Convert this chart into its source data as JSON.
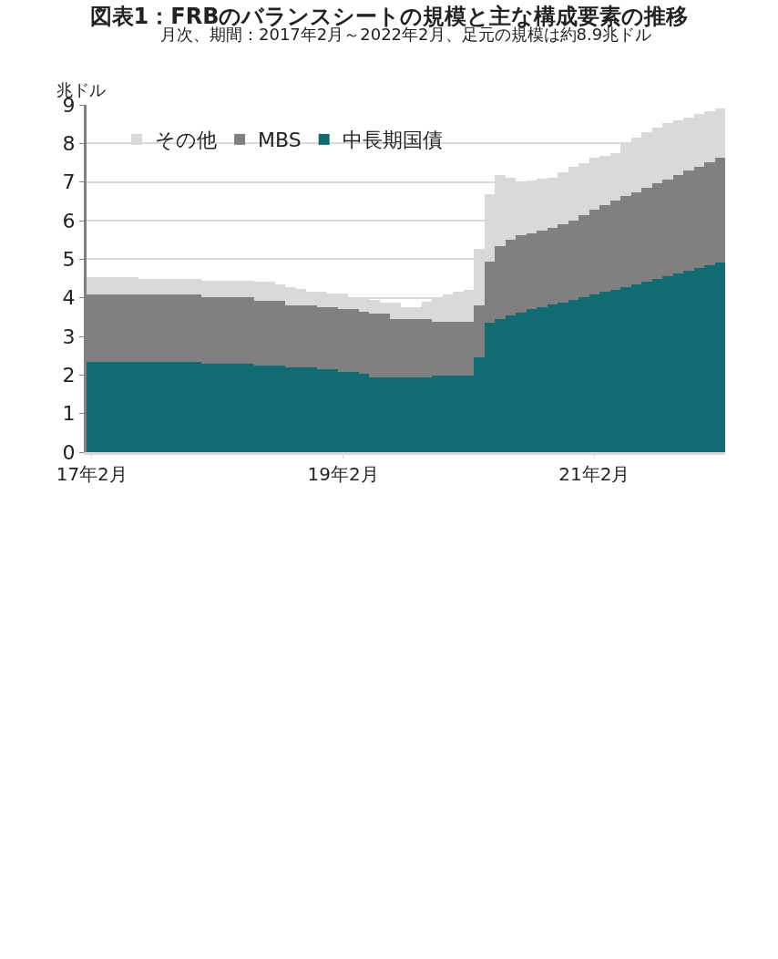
{
  "chart_data": {
    "type": "bar",
    "stacked": true,
    "title": "図表1：FRBのバランスシートの規模と主な構成要素の推移",
    "subtitle": "月次、期間：2017年2月～2022年2月、足元の規模は約8.9兆ドル",
    "ylabel": "兆ドル",
    "categories": [
      "17年2月",
      null,
      null,
      null,
      null,
      null,
      null,
      null,
      null,
      null,
      null,
      null,
      null,
      null,
      null,
      null,
      null,
      null,
      null,
      null,
      null,
      null,
      null,
      null,
      "19年2月",
      null,
      null,
      null,
      null,
      null,
      null,
      null,
      null,
      null,
      null,
      null,
      null,
      null,
      null,
      null,
      null,
      null,
      null,
      null,
      null,
      null,
      null,
      null,
      "21年2月",
      null,
      null,
      null,
      null,
      null,
      null,
      null,
      null,
      null,
      null,
      null,
      null
    ],
    "series": [
      {
        "name": "中長期国債",
        "color": "#116b70",
        "values": [
          2.33,
          2.33,
          2.33,
          2.33,
          2.33,
          2.33,
          2.33,
          2.33,
          2.33,
          2.33,
          2.33,
          2.28,
          2.28,
          2.28,
          2.28,
          2.28,
          2.24,
          2.24,
          2.24,
          2.19,
          2.19,
          2.19,
          2.14,
          2.14,
          2.08,
          2.08,
          2.02,
          1.93,
          1.93,
          1.93,
          1.93,
          1.93,
          1.93,
          1.99,
          1.99,
          1.99,
          1.99,
          2.45,
          3.35,
          3.45,
          3.55,
          3.62,
          3.7,
          3.76,
          3.82,
          3.88,
          3.95,
          4.02,
          4.09,
          4.15,
          4.21,
          4.27,
          4.35,
          4.42,
          4.5,
          4.57,
          4.64,
          4.71,
          4.78,
          4.85,
          4.92
        ]
      },
      {
        "name": "MBS",
        "color": "#808080",
        "values": [
          1.76,
          1.76,
          1.76,
          1.76,
          1.76,
          1.76,
          1.76,
          1.76,
          1.76,
          1.76,
          1.76,
          1.74,
          1.74,
          1.74,
          1.74,
          1.74,
          1.68,
          1.68,
          1.68,
          1.62,
          1.62,
          1.62,
          1.62,
          1.62,
          1.63,
          1.63,
          1.62,
          1.66,
          1.66,
          1.52,
          1.52,
          1.52,
          1.52,
          1.39,
          1.39,
          1.39,
          1.39,
          1.36,
          1.59,
          1.89,
          1.95,
          2.0,
          1.97,
          1.97,
          1.98,
          2.02,
          2.05,
          2.13,
          2.2,
          2.25,
          2.31,
          2.36,
          2.39,
          2.43,
          2.46,
          2.5,
          2.54,
          2.58,
          2.62,
          2.66,
          2.71
        ]
      },
      {
        "name": "その他",
        "color": "#d9d9d9",
        "values": [
          0.45,
          0.45,
          0.45,
          0.45,
          0.45,
          0.41,
          0.41,
          0.41,
          0.41,
          0.41,
          0.41,
          0.43,
          0.43,
          0.43,
          0.43,
          0.43,
          0.5,
          0.5,
          0.43,
          0.47,
          0.42,
          0.35,
          0.4,
          0.34,
          0.39,
          0.29,
          0.36,
          0.36,
          0.29,
          0.43,
          0.31,
          0.31,
          0.45,
          0.62,
          0.7,
          0.77,
          0.82,
          1.46,
          1.75,
          1.83,
          1.6,
          1.4,
          1.38,
          1.35,
          1.32,
          1.35,
          1.4,
          1.35,
          1.33,
          1.28,
          1.23,
          1.37,
          1.41,
          1.45,
          1.46,
          1.45,
          1.42,
          1.39,
          1.36,
          1.33,
          1.28
        ]
      }
    ],
    "ylim": [
      0,
      9
    ],
    "yticks": [
      0,
      1,
      2,
      3,
      4,
      5,
      6,
      7,
      8,
      9
    ],
    "grid": "y",
    "legend": "top left"
  }
}
